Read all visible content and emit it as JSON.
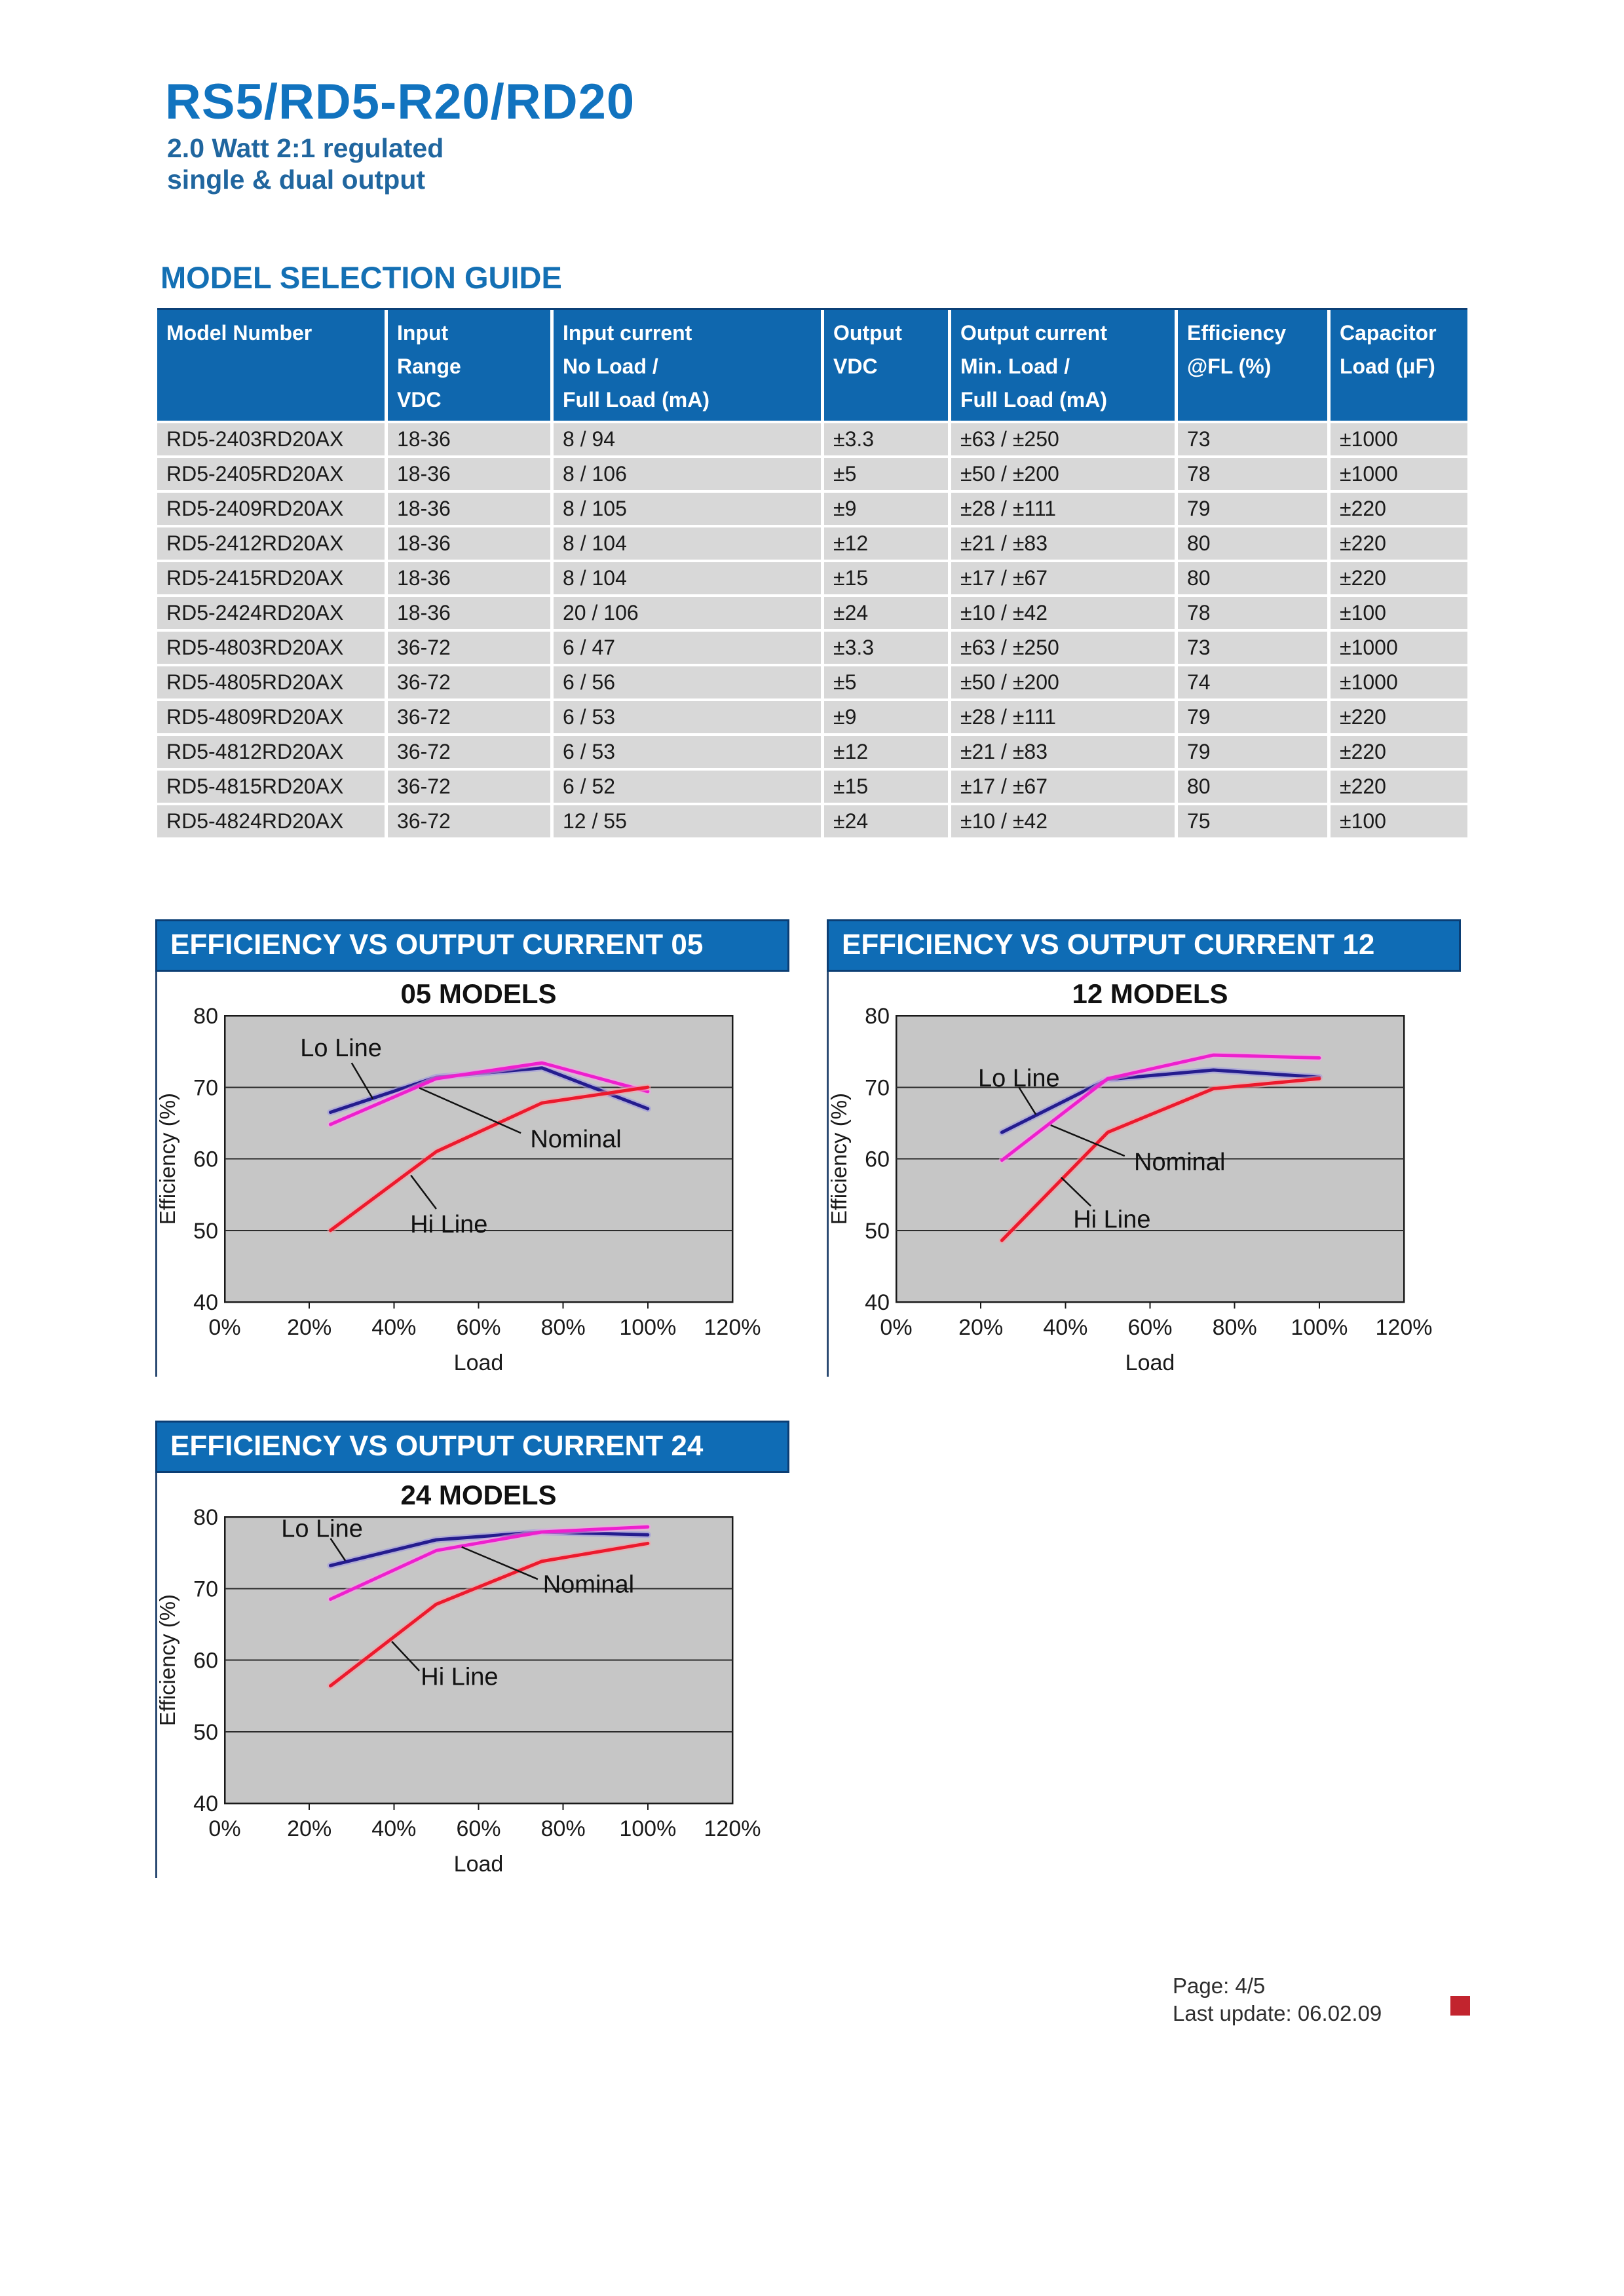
{
  "page": {
    "title": "RS5/RD5-R20/RD20",
    "subtitle_line1": "2.0 Watt 2:1 regulated",
    "subtitle_line2": "single & dual output",
    "section_heading": "MODEL SELECTION GUIDE",
    "footer": {
      "page_label": "Page: 4/5",
      "update_label": "Last update: 06.02.09"
    }
  },
  "colors": {
    "title_blue": "#1173BF",
    "subtitle_blue": "#20669F",
    "bar_blue": "#0F6CB5",
    "bar_border": "#0B3E74",
    "table_header_blue": "#0F67AE",
    "row_gray": "#D8D8D8",
    "plot_gray": "#C6C6C6",
    "footer_red": "#C2242E",
    "series": {
      "navy": {
        "main": "#241C8E",
        "glow": "#9B93E4"
      },
      "magenta": {
        "main": "#EE1FCE",
        "glow": "#F6A3E8"
      },
      "red": {
        "main": "#EC1A2D",
        "glow": "#F8A0A8"
      }
    }
  },
  "table": {
    "headers": [
      [
        "Model Number"
      ],
      [
        "Input",
        "Range",
        "VDC"
      ],
      [
        "Input current",
        "No Load /",
        "Full Load (mA)"
      ],
      [
        "Output",
        "VDC"
      ],
      [
        "Output current",
        "Min. Load /",
        "Full Load (mA)"
      ],
      [
        "Efficiency",
        "@FL (%)"
      ],
      [
        "Capacitor",
        "Load (μF)"
      ]
    ],
    "rows": [
      [
        "RD5-2403RD20AX",
        "18-36",
        "8 / 94",
        "±3.3",
        "±63 / ±250",
        "73",
        "±1000"
      ],
      [
        "RD5-2405RD20AX",
        "18-36",
        "8 / 106",
        "±5",
        "±50 / ±200",
        "78",
        "±1000"
      ],
      [
        "RD5-2409RD20AX",
        "18-36",
        "8 / 105",
        "±9",
        "±28 / ±111",
        "79",
        "±220"
      ],
      [
        "RD5-2412RD20AX",
        "18-36",
        "8 / 104",
        "±12",
        "±21 / ±83",
        "80",
        "±220"
      ],
      [
        "RD5-2415RD20AX",
        "18-36",
        "8 / 104",
        "±15",
        "±17 / ±67",
        "80",
        "±220"
      ],
      [
        "RD5-2424RD20AX",
        "18-36",
        "20 / 106",
        "±24",
        "±10 / ±42",
        "78",
        "±100"
      ],
      [
        "RD5-4803RD20AX",
        "36-72",
        "6 / 47",
        "±3.3",
        "±63 / ±250",
        "73",
        "±1000"
      ],
      [
        "RD5-4805RD20AX",
        "36-72",
        "6 / 56",
        "±5",
        "±50 / ±200",
        "74",
        "±1000"
      ],
      [
        "RD5-4809RD20AX",
        "36-72",
        "6 / 53",
        "±9",
        "±28 / ±111",
        "79",
        "±220"
      ],
      [
        "RD5-4812RD20AX",
        "36-72",
        "6 / 53",
        "±12",
        "±21 / ±83",
        "79",
        "±220"
      ],
      [
        "RD5-4815RD20AX",
        "36-72",
        "6 / 52",
        "±15",
        "±17 / ±67",
        "80",
        "±220"
      ],
      [
        "RD5-4824RD20AX",
        "36-72",
        "12 / 55",
        "±24",
        "±10 / ±42",
        "75",
        "±100"
      ]
    ]
  },
  "chart_data": [
    {
      "type": "line",
      "header": "EFFICIENCY VS OUTPUT CURRENT 05",
      "title": "05 MODELS",
      "xlabel": "Load",
      "ylabel": "Efficiency (%)",
      "xlim": [
        0,
        120
      ],
      "ylim": [
        40,
        80
      ],
      "xticks": [
        {
          "v": 0,
          "label": "0%"
        },
        {
          "v": 20,
          "label": "20%"
        },
        {
          "v": 40,
          "label": "40%"
        },
        {
          "v": 60,
          "label": "60%"
        },
        {
          "v": 80,
          "label": "80%"
        },
        {
          "v": 100,
          "label": "100%"
        },
        {
          "v": 120,
          "label": "120%"
        }
      ],
      "yticks": [
        {
          "v": 80,
          "label": "80"
        },
        {
          "v": 70,
          "label": "70"
        },
        {
          "v": 60,
          "label": "60"
        },
        {
          "v": 50,
          "label": "50"
        },
        {
          "v": 40,
          "label": "40"
        }
      ],
      "series": [
        {
          "name": "Lo Line",
          "color_key": "navy",
          "points": [
            [
              25,
              66.5
            ],
            [
              50,
              71.4
            ],
            [
              75,
              72.7
            ],
            [
              100,
              67.0
            ]
          ]
        },
        {
          "name": "Nominal",
          "color_key": "magenta",
          "points": [
            [
              25,
              64.8
            ],
            [
              50,
              71.2
            ],
            [
              75,
              73.4
            ],
            [
              100,
              69.4
            ]
          ]
        },
        {
          "name": "Hi Line",
          "color_key": "red",
          "points": [
            [
              25,
              50.0
            ],
            [
              50,
              61.0
            ],
            [
              75,
              67.8
            ],
            [
              100,
              70.0
            ]
          ]
        }
      ],
      "annotations": [
        {
          "text": "Lo Line",
          "x": 27.5,
          "y": 75.5,
          "line": [
            [
              30,
              73.4
            ],
            [
              35,
              68.4
            ]
          ]
        },
        {
          "text": "Nominal",
          "x": 83,
          "y": 62.8,
          "line": [
            [
              70,
              63.6
            ],
            [
              46,
              69.9
            ]
          ]
        },
        {
          "text": "Hi Line",
          "x": 53,
          "y": 50.9,
          "line": [
            [
              50,
              53.0
            ],
            [
              44,
              57.7
            ]
          ]
        }
      ]
    },
    {
      "type": "line",
      "header": "EFFICIENCY VS OUTPUT CURRENT 12",
      "title": "12 MODELS",
      "xlabel": "Load",
      "ylabel": "Efficiency (%)",
      "xlim": [
        0,
        120
      ],
      "ylim": [
        40,
        80
      ],
      "xticks": [
        {
          "v": 0,
          "label": "0%"
        },
        {
          "v": 20,
          "label": "20%"
        },
        {
          "v": 40,
          "label": "40%"
        },
        {
          "v": 60,
          "label": "60%"
        },
        {
          "v": 80,
          "label": "80%"
        },
        {
          "v": 100,
          "label": "100%"
        },
        {
          "v": 120,
          "label": "120%"
        }
      ],
      "yticks": [
        {
          "v": 80,
          "label": "80"
        },
        {
          "v": 70,
          "label": "70"
        },
        {
          "v": 60,
          "label": "60"
        },
        {
          "v": 50,
          "label": "50"
        },
        {
          "v": 40,
          "label": "40"
        }
      ],
      "series": [
        {
          "name": "Lo Line",
          "color_key": "navy",
          "points": [
            [
              25,
              63.7
            ],
            [
              50,
              71.1
            ],
            [
              75,
              72.4
            ],
            [
              100,
              71.4
            ]
          ]
        },
        {
          "name": "Nominal",
          "color_key": "magenta",
          "points": [
            [
              25,
              59.8
            ],
            [
              50,
              71.2
            ],
            [
              75,
              74.5
            ],
            [
              100,
              74.1
            ]
          ]
        },
        {
          "name": "Hi Line",
          "color_key": "red",
          "points": [
            [
              25,
              48.6
            ],
            [
              50,
              63.7
            ],
            [
              75,
              69.8
            ],
            [
              100,
              71.2
            ]
          ]
        }
      ],
      "annotations": [
        {
          "text": "Lo Line",
          "x": 29,
          "y": 71.3,
          "line": [
            [
              29,
              70.0
            ],
            [
              33,
              66.2
            ]
          ]
        },
        {
          "text": "Nominal",
          "x": 67,
          "y": 59.6,
          "line": [
            [
              54,
              60.4
            ],
            [
              36.5,
              64.7
            ]
          ]
        },
        {
          "text": "Hi Line",
          "x": 51,
          "y": 51.6,
          "line": [
            [
              46,
              53.4
            ],
            [
              39,
              57.4
            ]
          ]
        }
      ]
    },
    {
      "type": "line",
      "header": "EFFICIENCY VS OUTPUT CURRENT 24",
      "title": "24 MODELS",
      "xlabel": "Load",
      "ylabel": "Efficiency (%)",
      "xlim": [
        0,
        120
      ],
      "ylim": [
        40,
        80
      ],
      "xticks": [
        {
          "v": 0,
          "label": "0%"
        },
        {
          "v": 20,
          "label": "20%"
        },
        {
          "v": 40,
          "label": "40%"
        },
        {
          "v": 60,
          "label": "60%"
        },
        {
          "v": 80,
          "label": "80%"
        },
        {
          "v": 100,
          "label": "100%"
        },
        {
          "v": 120,
          "label": "120%"
        }
      ],
      "yticks": [
        {
          "v": 80,
          "label": "80"
        },
        {
          "v": 70,
          "label": "70"
        },
        {
          "v": 60,
          "label": "60"
        },
        {
          "v": 50,
          "label": "50"
        },
        {
          "v": 40,
          "label": "40"
        }
      ],
      "series": [
        {
          "name": "Lo Line",
          "color_key": "navy",
          "points": [
            [
              25,
              73.2
            ],
            [
              50,
              76.8
            ],
            [
              75,
              77.9
            ],
            [
              100,
              77.5
            ]
          ]
        },
        {
          "name": "Nominal",
          "color_key": "magenta",
          "points": [
            [
              25,
              68.5
            ],
            [
              50,
              75.3
            ],
            [
              75,
              77.9
            ],
            [
              100,
              78.6
            ]
          ]
        },
        {
          "name": "Hi Line",
          "color_key": "red",
          "points": [
            [
              25,
              56.4
            ],
            [
              50,
              67.8
            ],
            [
              75,
              73.8
            ],
            [
              100,
              76.3
            ]
          ]
        }
      ],
      "annotations": [
        {
          "text": "Lo Line",
          "x": 23,
          "y": 78.4,
          "line": [
            [
              25,
              77.0
            ],
            [
              28.5,
              73.9
            ]
          ]
        },
        {
          "text": "Nominal",
          "x": 86,
          "y": 70.6,
          "line": [
            [
              74,
              71.3
            ],
            [
              56,
              75.8
            ]
          ]
        },
        {
          "text": "Hi Line",
          "x": 55.5,
          "y": 57.7,
          "line": [
            [
              39.5,
              62.6
            ],
            [
              46,
              58.5
            ]
          ]
        }
      ]
    }
  ]
}
